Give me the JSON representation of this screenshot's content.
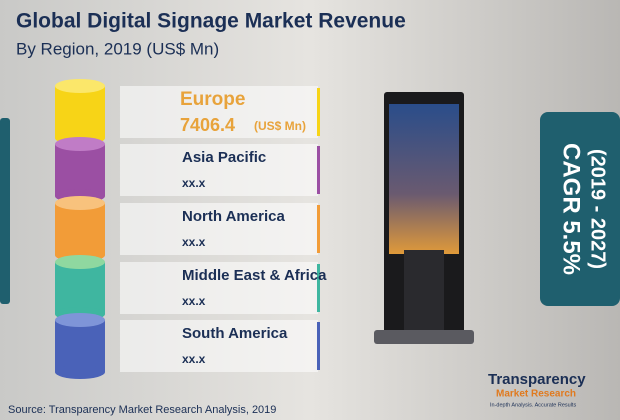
{
  "header": {
    "title": "Global Digital Signage Market Revenue",
    "subtitle": "By Region, 2019 (US$ Mn)"
  },
  "regions": [
    {
      "name": "Europe",
      "value": "7406.4",
      "unit": "(US$ Mn)"
    },
    {
      "name": "Asia Pacific",
      "value": "xx.x"
    },
    {
      "name": "North America",
      "value": "xx.x"
    },
    {
      "name": "Middle East & Africa",
      "value": "xx.x"
    },
    {
      "name": "South America",
      "value": "xx.x"
    }
  ],
  "cagr": {
    "label": "CAGR 5.5%",
    "period": "(2019 - 2027)"
  },
  "logo": {
    "line1": "Transparency",
    "line2": "Market Research",
    "tagline": "In-depth Analysis. Accurate Results"
  },
  "source": "Source: Transparency Market Research Analysis, 2019"
}
